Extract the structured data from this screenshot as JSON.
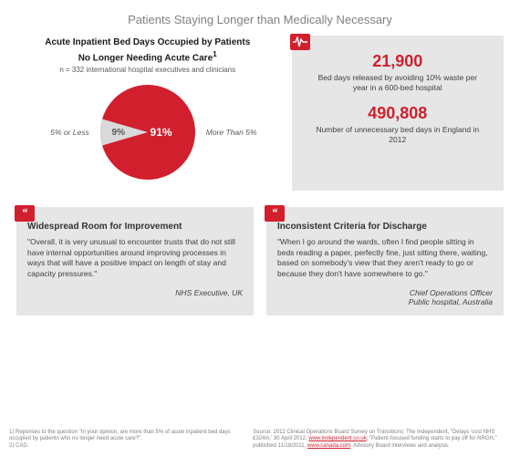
{
  "page": {
    "title": "Patients Staying Longer than Medically Necessary"
  },
  "chart": {
    "type": "pie",
    "title_line1": "Acute Inpatient Bed Days Occupied by Patients",
    "title_line2": "No Longer Needing Acute Care",
    "title_super": "1",
    "subtitle": "n = 332 international hospital executives and clinicians",
    "slices": [
      {
        "label": "5% or Less",
        "value": 9,
        "value_label": "9%",
        "color": "#d9d9d9"
      },
      {
        "label": "More Than 5%",
        "value": 91,
        "value_label": "91%",
        "color": "#d21f2d"
      }
    ],
    "radius": 52,
    "label_fontsize": 8.5,
    "value_color_light": "#595959",
    "value_color_dark": "#ffffff",
    "background_color": "#ffffff"
  },
  "stats": {
    "icon": "pulse-icon",
    "blocks": [
      {
        "value": "21,900",
        "desc": "Bed days released by avoiding 10% waste per year in a 600-bed hospital"
      },
      {
        "value": "490,808",
        "desc": "Number of unnecessary bed days in England in 2012"
      }
    ],
    "value_color": "#d21f2d",
    "panel_bg": "#e6e6e6"
  },
  "quotes": [
    {
      "title": "Widespread Room for Improvement",
      "body": "\"Overall, it is very unusual to encounter trusts that do not still have internal opportunities around improving processes in ways that will have a positive impact on length of stay and capacity pressures.\"",
      "attr": "NHS Executive, UK"
    },
    {
      "title": "Inconsistent Criteria for Discharge",
      "body": "\"When I go around the wards, often I find people sitting in beds reading a paper, perfectly fine, just sitting there, waiting, based on somebody's view that they aren't ready to go or because they don't have somewhere to go.\"",
      "attr": "Chief Operations Officer\nPublic hospital, Australia"
    }
  ],
  "footnotes": {
    "left": "1)  Reponses to the question \"In your opinion, are more than 5% of acute inpatient bed days\n     occupied by patients who no longer need acute care?\".\n2)  CAD.",
    "right_pre": "Source: 2012 Clinical Operations Board Survey on Transitions; The Independent, \"Delays 'cost NHS £324m,' 30 April 2012, ",
    "right_link1": "www.independent.co.uk",
    "right_mid": "; \"Patient-focused funding starts to pay off for NRGH,\" published 11/18/2011, ",
    "right_link2": "www.canada.com",
    "right_post": "; Advisory Board interviews and analysis."
  },
  "colors": {
    "accent": "#d21f2d",
    "panel_bg": "#e6e6e6",
    "text": "#595959",
    "title": "#808080"
  }
}
